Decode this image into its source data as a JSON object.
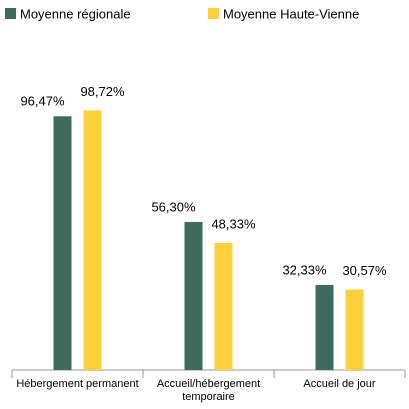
{
  "chart_data": {
    "type": "bar",
    "categories": [
      "Hébergement permanent",
      "Accueil/hébergement temporaire",
      "Accueil de jour"
    ],
    "series": [
      {
        "name": "Moyenne régionale",
        "color": "#3f6b5e",
        "values": [
          96.47,
          56.3,
          32.33
        ],
        "value_labels": [
          "96,47%",
          "56,30%",
          "32,33%"
        ]
      },
      {
        "name": "Moyenne Haute-Vienne",
        "color": "#fdd03b",
        "values": [
          98.72,
          48.33,
          30.57
        ],
        "value_labels": [
          "98,72%",
          "48,33%",
          "30,57%"
        ]
      }
    ],
    "ylim": [
      0,
      100
    ]
  }
}
